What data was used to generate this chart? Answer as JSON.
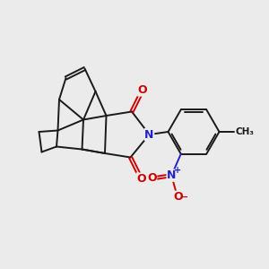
{
  "bg_color": "#ebebeb",
  "bond_color": "#1a1a1a",
  "N_color": "#2222cc",
  "O_color": "#cc0000",
  "lw": 1.4,
  "xlim": [
    0,
    10
  ],
  "ylim": [
    0,
    10
  ]
}
